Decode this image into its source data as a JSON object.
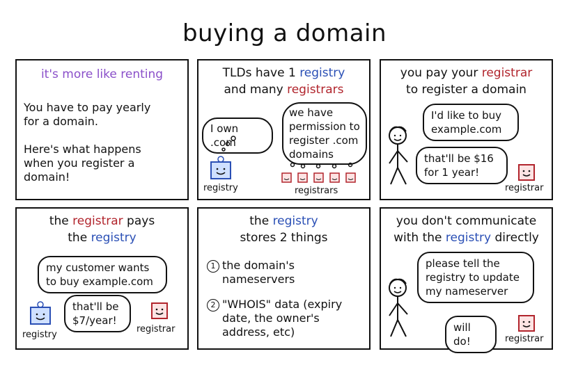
{
  "title": "buying a domain",
  "panels": {
    "p1": {
      "heading": "it's more like renting",
      "body1": "You have to pay yearly for a domain.",
      "body2": "Here's what happens when you register a domain!"
    },
    "p2": {
      "heading_a": "TLDs have 1 ",
      "heading_registry": "registry",
      "heading_b": "and many ",
      "heading_registrars": "registrars",
      "thought_registry": "I own .com",
      "thought_registrars": "we have permission to register .com domains",
      "label_registry": "registry",
      "label_registrars": "registrars"
    },
    "p3": {
      "heading_a": "you pay your ",
      "heading_registrar": "registrar",
      "heading_b": "to register a domain",
      "speech_person": "I'd like to buy example.com",
      "speech_registrar": "that'll be $16 for 1 year!",
      "label_registrar": "registrar"
    },
    "p4": {
      "heading_a": "the ",
      "heading_registrar": "registrar",
      "heading_b": " pays",
      "heading_c": "the ",
      "heading_registry": "registry",
      "speech_registrar": "my customer wants to buy example.com",
      "speech_registry": "that'll be $7/year!",
      "label_registry": "registry",
      "label_registrar": "registrar"
    },
    "p5": {
      "heading_a": "the ",
      "heading_registry": "registry",
      "heading_b": "stores 2 things",
      "item1_num": "1",
      "item1": "the domain's nameservers",
      "item2_num": "2",
      "item2": "\"WHOIS\" data (expiry date, the owner's address, etc)"
    },
    "p6": {
      "heading_a": "you don't communicate",
      "heading_b": "with the ",
      "heading_registry": "registry",
      "heading_c": " directly",
      "speech_person": "please tell the registry to update my nameserver",
      "speech_registrar": "will do!",
      "label_registrar": "registrar"
    }
  },
  "colors": {
    "purple": "#8a4fc9",
    "blue": "#2a4fb5",
    "red": "#b1242c"
  }
}
